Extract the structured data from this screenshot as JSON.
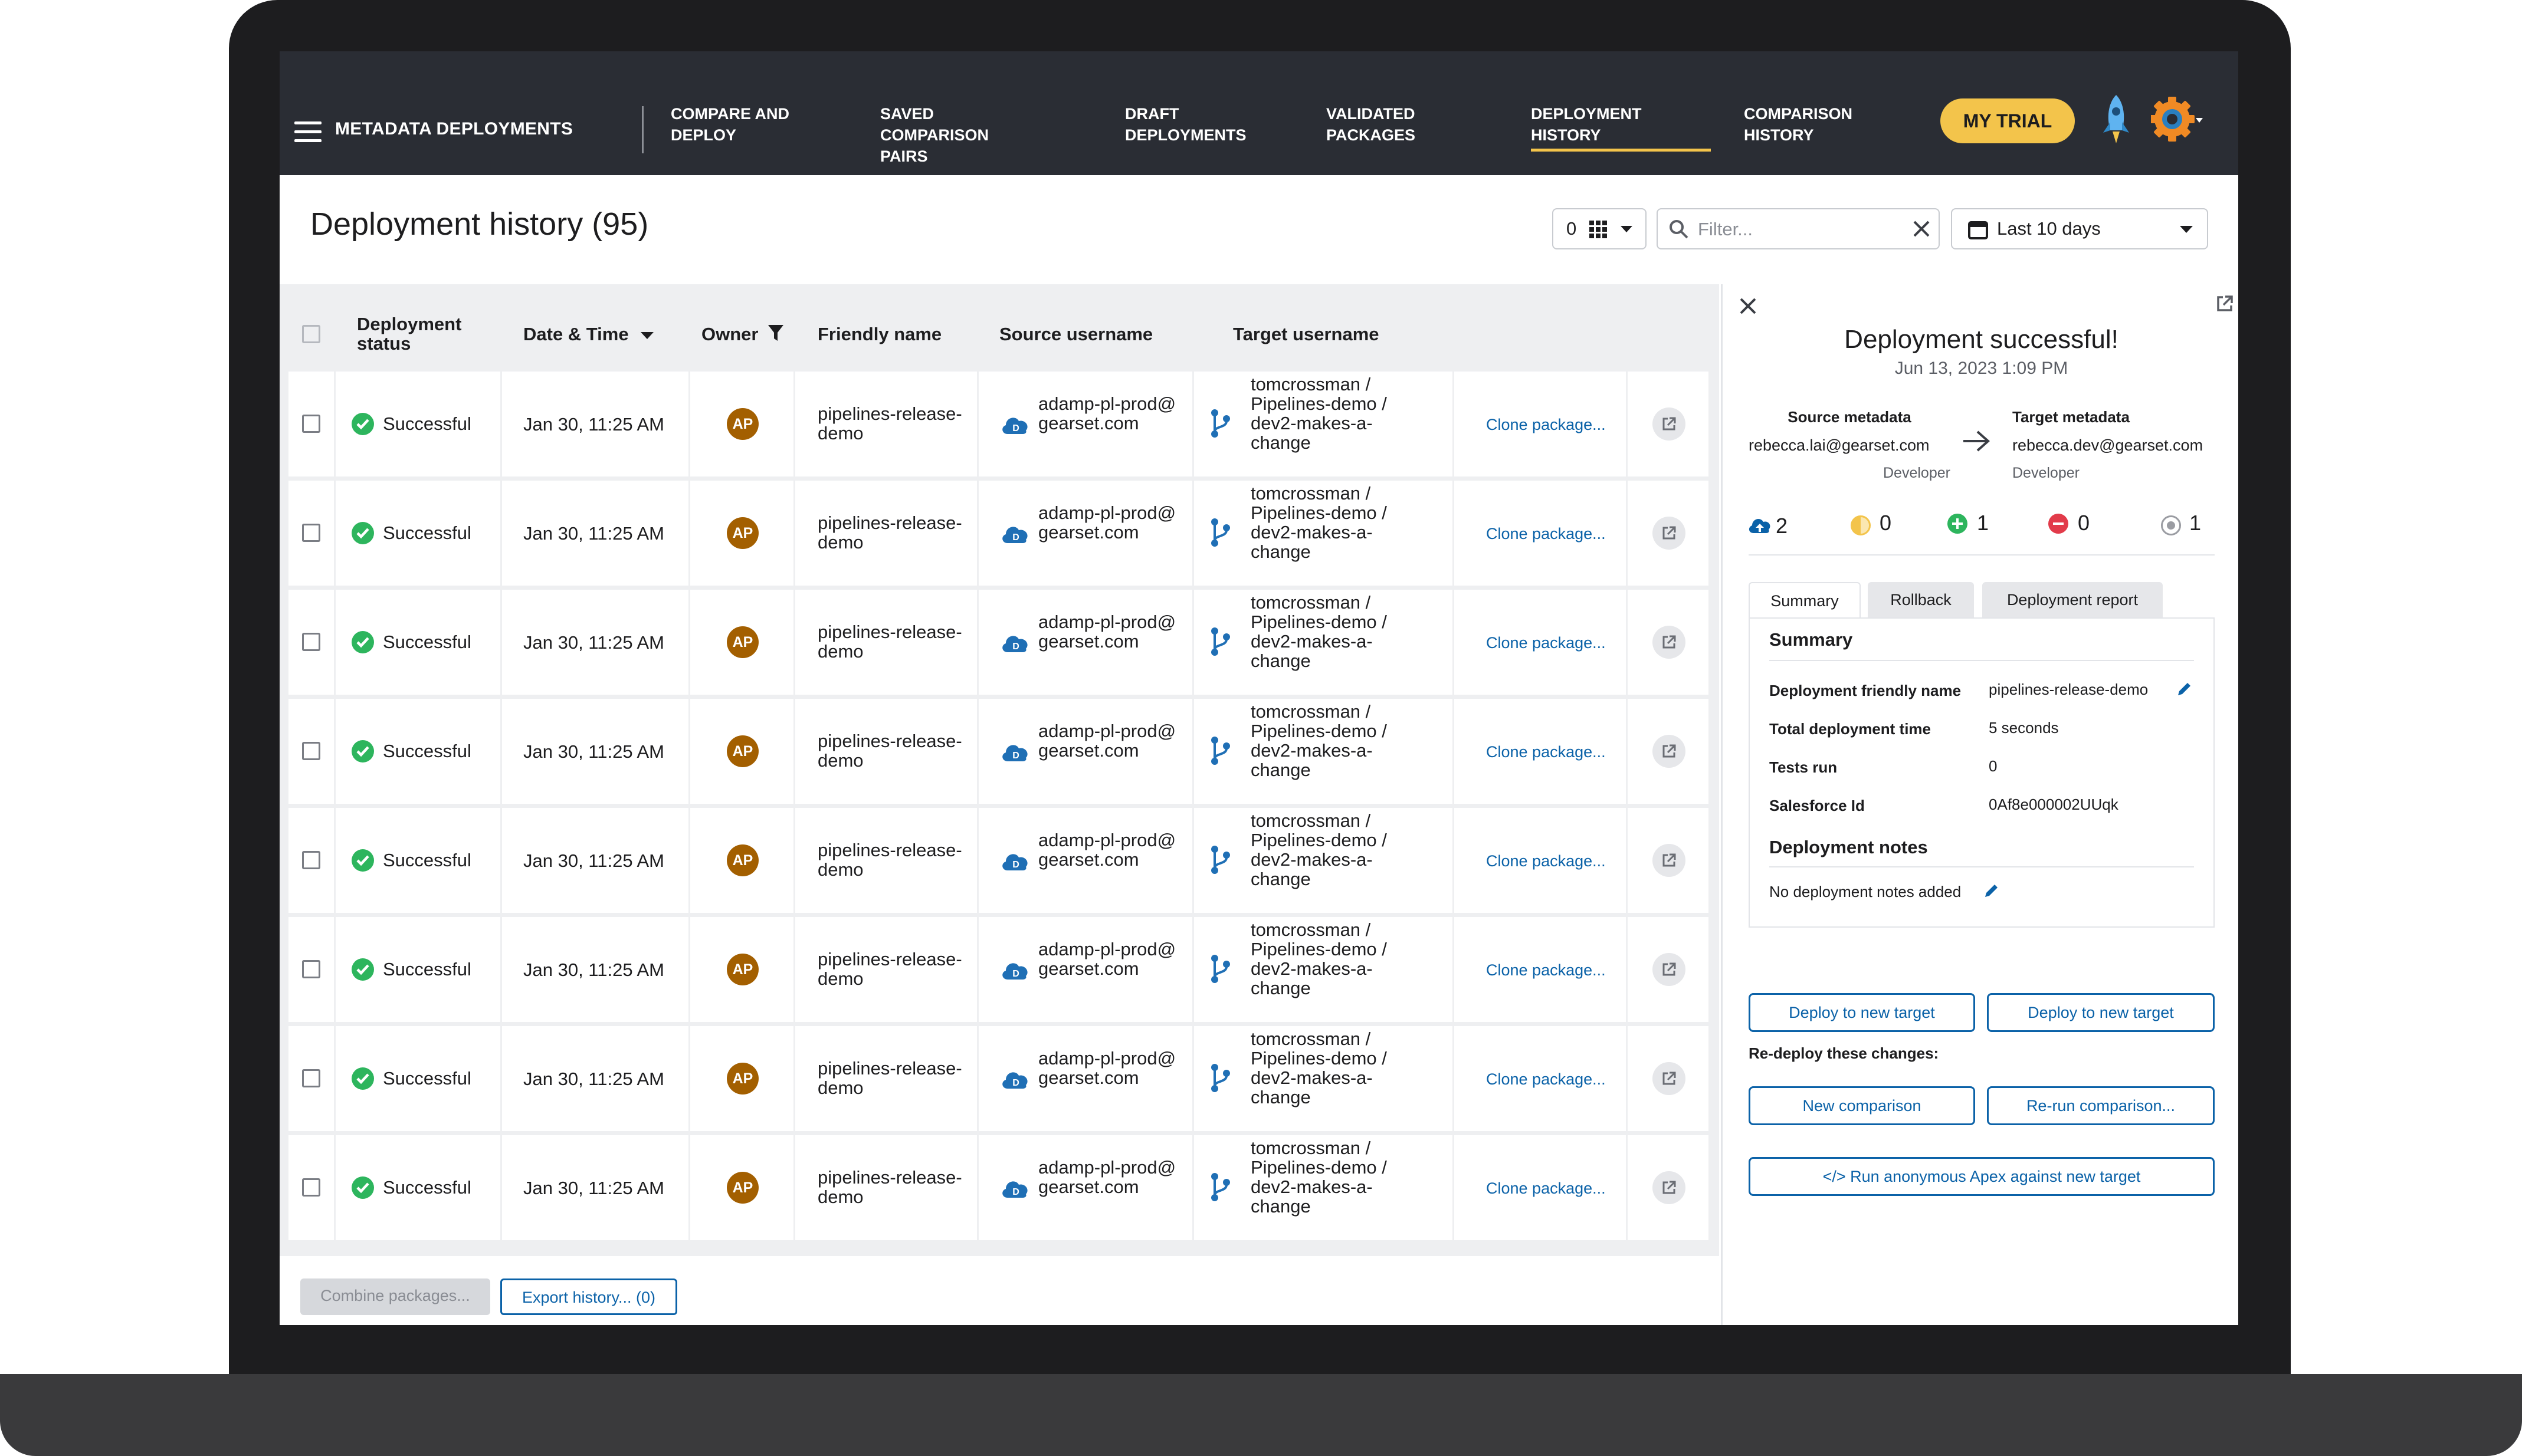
{
  "app": {
    "section_title": "METADATA DEPLOYMENTS"
  },
  "nav": {
    "tabs": [
      {
        "label": "COMPARE AND DEPLOY"
      },
      {
        "label": "SAVED COMPARISON PAIRS"
      },
      {
        "label": "DRAFT DEPLOYMENTS"
      },
      {
        "label": "VALIDATED PACKAGES"
      },
      {
        "label": "DEPLOYMENT HISTORY",
        "active": true
      },
      {
        "label": "COMPARISON HISTORY"
      }
    ],
    "trial_label": "MY TRIAL",
    "icons": [
      "menu-icon",
      "rocket-icon",
      "gear-icon",
      "chevron-down-icon"
    ]
  },
  "header": {
    "title": "Deployment history (95)",
    "columns_count": "0",
    "filter_placeholder": "Filter...",
    "date_range": "Last 10 days"
  },
  "table": {
    "columns": [
      "Deployment status",
      "Date & Time",
      "Owner",
      "Friendly name",
      "Source username",
      "Target username"
    ],
    "sort_column": "Date & Time",
    "rows": [
      {
        "status": "Successful",
        "datetime": "Jan 30, 11:25 AM",
        "owner": "AP",
        "friendly_name": "pipelines-release-demo",
        "source": "adamp-pl-prod@gearset.com",
        "target": "tomcrossman / Pipelines-demo / dev2-makes-a-change",
        "action": "Clone package..."
      },
      {
        "status": "Successful",
        "datetime": "Jan 30, 11:25 AM",
        "owner": "AP",
        "friendly_name": "pipelines-release-demo",
        "source": "adamp-pl-prod@gearset.com",
        "target": "tomcrossman / Pipelines-demo / dev2-makes-a-change",
        "action": "Clone package..."
      },
      {
        "status": "Successful",
        "datetime": "Jan 30, 11:25 AM",
        "owner": "AP",
        "friendly_name": "pipelines-release-demo",
        "source": "adamp-pl-prod@gearset.com",
        "target": "tomcrossman / Pipelines-demo / dev2-makes-a-change",
        "action": "Clone package..."
      },
      {
        "status": "Successful",
        "datetime": "Jan 30, 11:25 AM",
        "owner": "AP",
        "friendly_name": "pipelines-release-demo",
        "source": "adamp-pl-prod@gearset.com",
        "target": "tomcrossman / Pipelines-demo / dev2-makes-a-change",
        "action": "Clone package..."
      },
      {
        "status": "Successful",
        "datetime": "Jan 30, 11:25 AM",
        "owner": "AP",
        "friendly_name": "pipelines-release-demo",
        "source": "adamp-pl-prod@gearset.com",
        "target": "tomcrossman / Pipelines-demo / dev2-makes-a-change",
        "action": "Clone package..."
      },
      {
        "status": "Successful",
        "datetime": "Jan 30, 11:25 AM",
        "owner": "AP",
        "friendly_name": "pipelines-release-demo",
        "source": "adamp-pl-prod@gearset.com",
        "target": "tomcrossman / Pipelines-demo / dev2-makes-a-change",
        "action": "Clone package..."
      },
      {
        "status": "Successful",
        "datetime": "Jan 30, 11:25 AM",
        "owner": "AP",
        "friendly_name": "pipelines-release-demo",
        "source": "adamp-pl-prod@gearset.com",
        "target": "tomcrossman / Pipelines-demo / dev2-makes-a-change",
        "action": "Clone package..."
      },
      {
        "status": "Successful",
        "datetime": "Jan 30, 11:25 AM",
        "owner": "AP",
        "friendly_name": "pipelines-release-demo",
        "source": "adamp-pl-prod@gearset.com",
        "target": "tomcrossman / Pipelines-demo / dev2-makes-a-change",
        "action": "Clone package..."
      }
    ]
  },
  "footer": {
    "combine_label": "Combine packages...",
    "export_label": "Export history... (0)"
  },
  "panel": {
    "title": "Deployment successful!",
    "date": "Jun 13, 2023 1:09 PM",
    "source": {
      "heading": "Source metadata",
      "user": "rebecca.lai@gearset.com",
      "role": "Developer"
    },
    "target": {
      "heading": "Target metadata",
      "user": "rebecca.dev@gearset.com",
      "role": "Developer"
    },
    "stats": {
      "deployed": "2",
      "changed": "0",
      "added": "1",
      "removed": "0",
      "unchanged": "1"
    },
    "tabs": [
      "Summary",
      "Rollback",
      "Deployment report"
    ],
    "summary_heading": "Summary",
    "summary": {
      "friendly_name_label": "Deployment friendly name",
      "friendly_name": "pipelines-release-demo",
      "total_time_label": "Total deployment time",
      "total_time": "5 seconds",
      "tests_run_label": "Tests run",
      "tests_run": "0",
      "salesforce_id_label": "Salesforce Id",
      "salesforce_id": "0Af8e000002UUqk"
    },
    "notes_heading": "Deployment notes",
    "notes": "No deployment notes added",
    "deploy_new_target_1": "Deploy to new target",
    "deploy_new_target_2": "Deploy to new target",
    "redeploy_label": "Re-deploy these changes:",
    "new_comparison": "New comparison",
    "rerun_comparison": "Re-run comparison...",
    "run_apex": "</> Run anonymous Apex against new target"
  },
  "colors": {
    "accent": "#0b62a8",
    "trial": "#f3c44b",
    "success": "#2db55d",
    "nav_bg": "#2a2d34",
    "owner_avatar": "#a35f00"
  }
}
